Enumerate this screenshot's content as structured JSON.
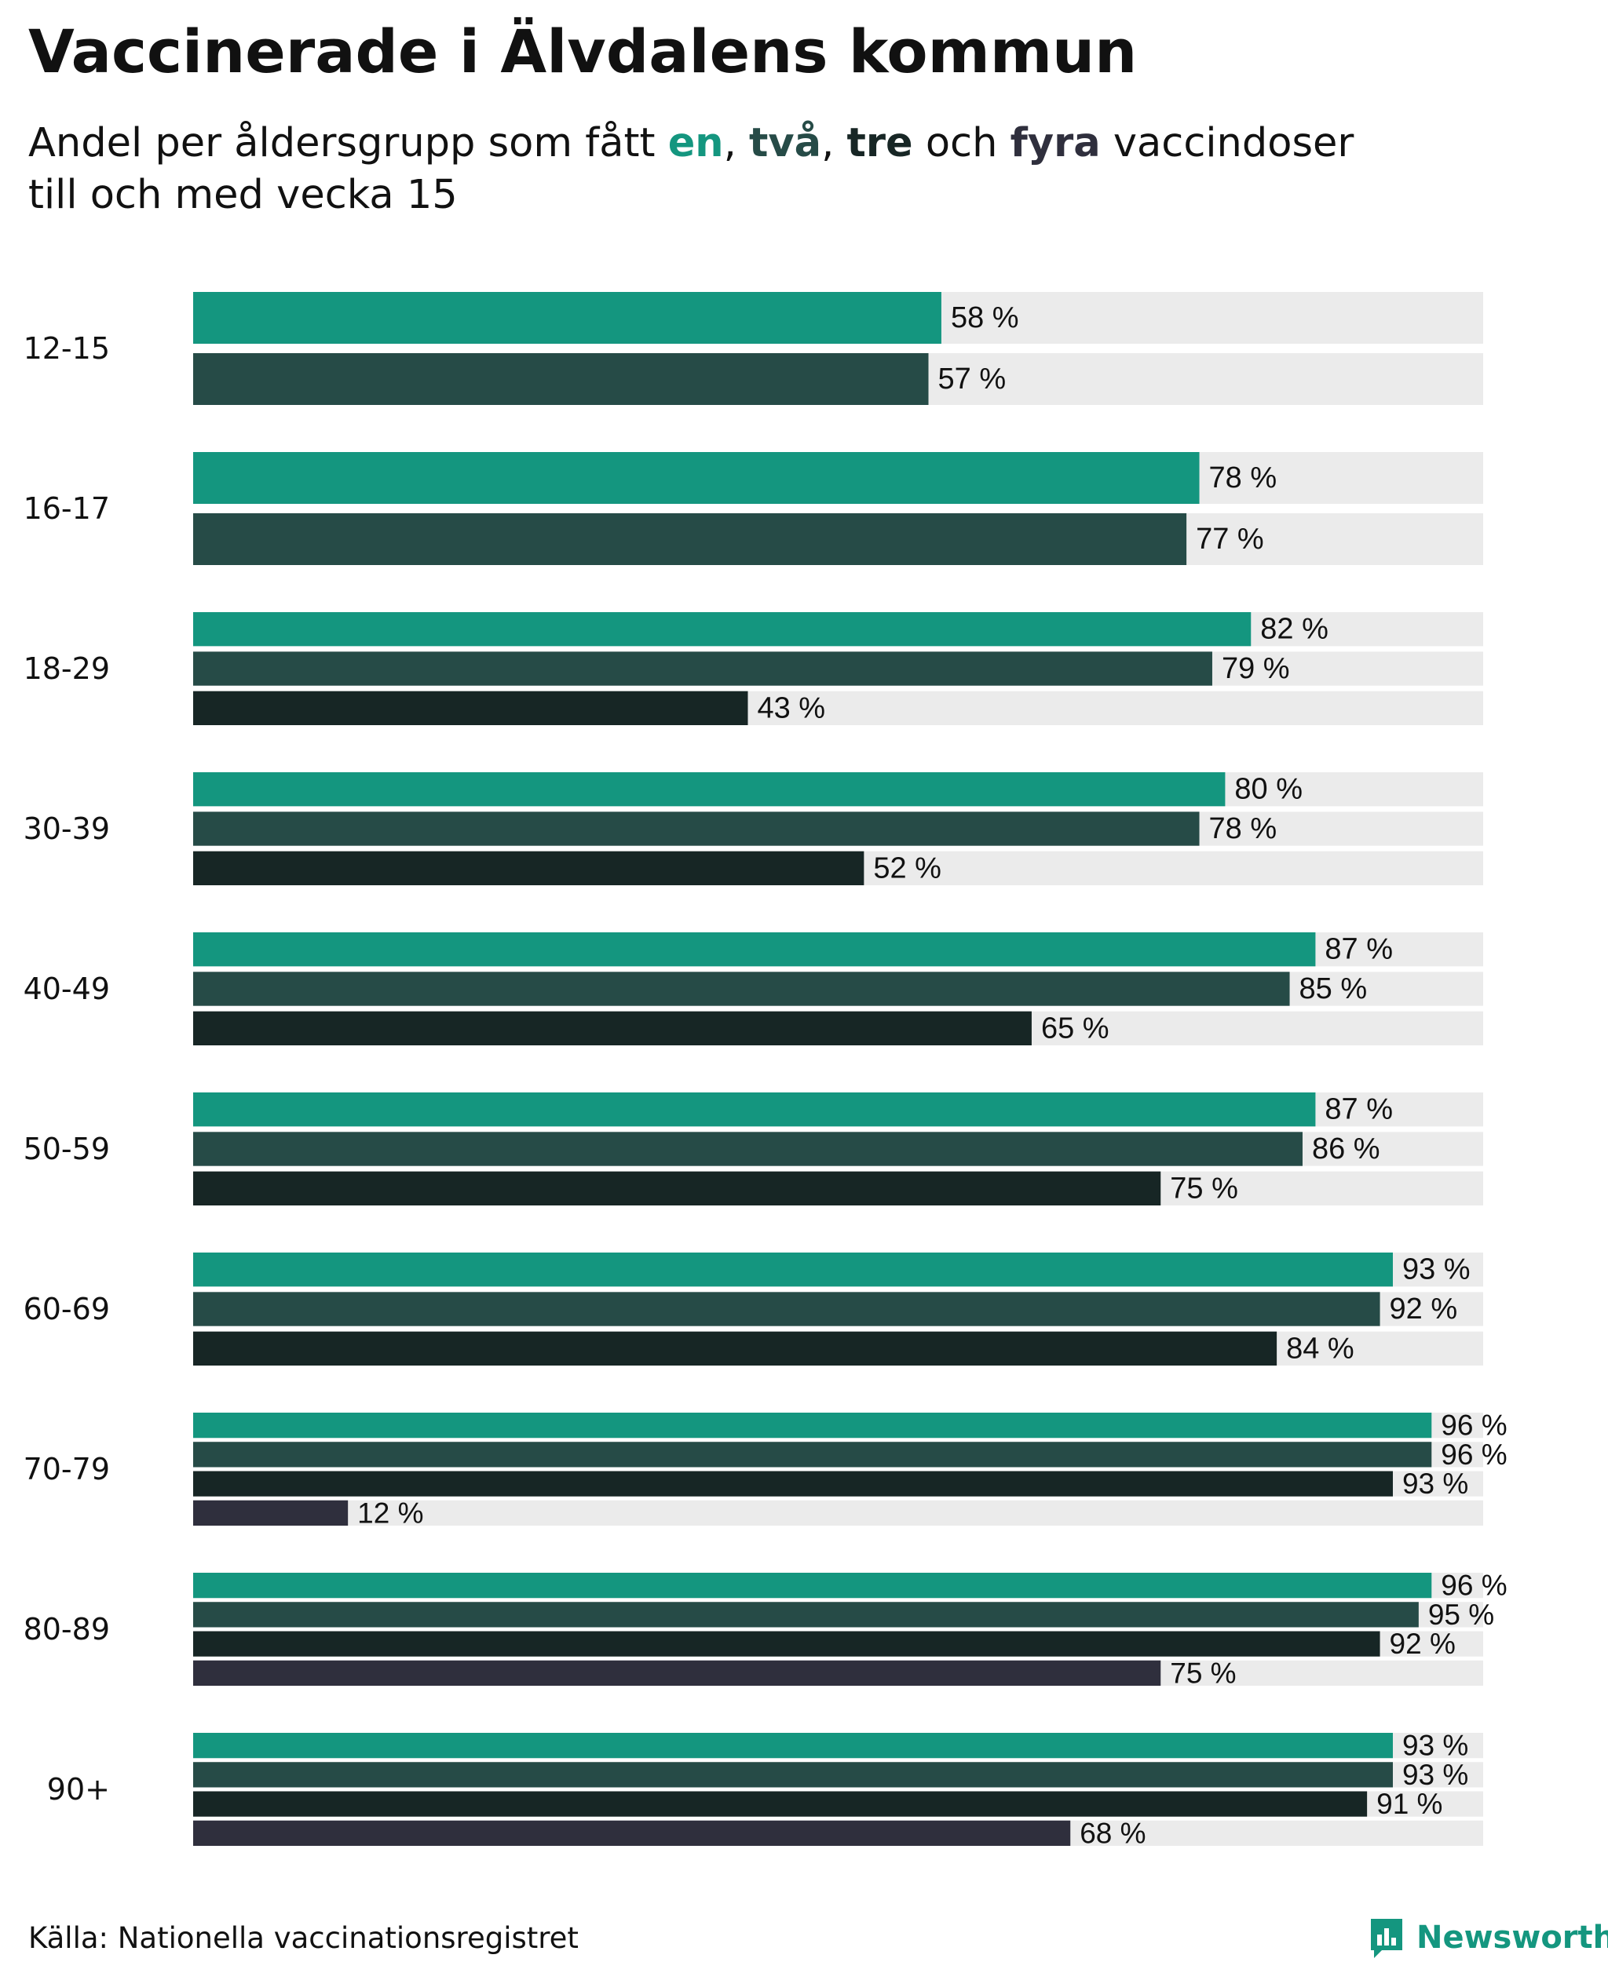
{
  "header": {
    "title": "Vaccinerade i Älvdalens kommun",
    "subtitle_prefix": "Andel per åldersgrupp som fått",
    "subtitle_comma": ",",
    "subtitle_and": "och",
    "subtitle_suffix": "vaccindoser",
    "subtitle_line2": "till och med vecka 15",
    "dose_words": [
      "en",
      "två",
      "tre",
      "fyra"
    ]
  },
  "colors": {
    "dose1": "#14967f",
    "dose2": "#264b47",
    "dose3": "#172625",
    "dose4": "#2f2f3d",
    "track": "#ebebeb",
    "text": "#111111",
    "brand": "#14967f"
  },
  "chart_data": {
    "type": "bar",
    "orientation": "horizontal",
    "title": "Vaccinerade i Älvdalens kommun",
    "subtitle": "Andel per åldersgrupp som fått en, två, tre och fyra vaccindoser till och med vecka 15",
    "categories": [
      "12-15",
      "16-17",
      "18-29",
      "30-39",
      "40-49",
      "50-59",
      "60-69",
      "70-79",
      "80-89",
      "90+"
    ],
    "series": [
      {
        "name": "en",
        "values": [
          58,
          78,
          82,
          80,
          87,
          87,
          93,
          96,
          96,
          93
        ]
      },
      {
        "name": "två",
        "values": [
          57,
          77,
          79,
          78,
          85,
          86,
          92,
          96,
          95,
          93
        ]
      },
      {
        "name": "tre",
        "values": [
          null,
          null,
          43,
          52,
          65,
          75,
          84,
          93,
          92,
          91
        ]
      },
      {
        "name": "fyra",
        "values": [
          null,
          null,
          null,
          null,
          null,
          null,
          null,
          12,
          75,
          68
        ]
      }
    ],
    "value_suffix": " %",
    "xlim": [
      0,
      100
    ],
    "xlabel": "",
    "ylabel": "",
    "grid": false,
    "legend": "in subtitle"
  },
  "footer": {
    "source": "Källa: Nationella vaccinationsregistret",
    "brand": "Newsworthy",
    "brand_icon": "bar-chart-icon"
  }
}
